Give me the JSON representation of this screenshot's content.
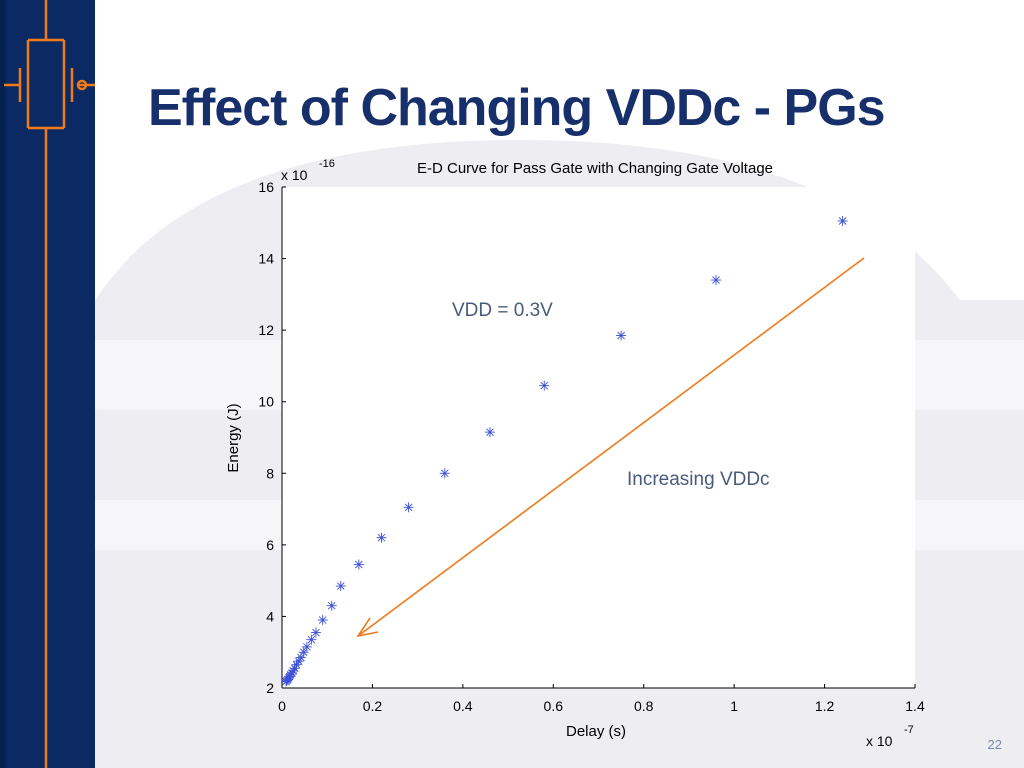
{
  "slide": {
    "title": "Effect of Changing VDDc - PGs",
    "page_number": "22"
  },
  "colors": {
    "sidebar": "#0b2a63",
    "title": "#17306b",
    "markers": "#3b4fd6",
    "arrow": "#f07a1a",
    "annotation_text": "#4a5a7a"
  },
  "annotations": {
    "vdd_label": "VDD = 0.3V",
    "arrow_label": "Increasing VDDc"
  },
  "chart_data": {
    "type": "scatter",
    "title": "E-D Curve for Pass Gate with Changing Gate Voltage",
    "xlabel": "Delay (s)",
    "ylabel": "Energy (J)",
    "x_multiplier": "x 10",
    "x_exponent": "-7",
    "y_multiplier": "x 10",
    "y_exponent": "-16",
    "xlim": [
      0,
      1.4
    ],
    "ylim": [
      2,
      16
    ],
    "xticks": [
      "0",
      "0.2",
      "0.4",
      "0.6",
      "0.8",
      "1",
      "1.2",
      "1.4"
    ],
    "yticks": [
      "2",
      "4",
      "6",
      "8",
      "10",
      "12",
      "14",
      "16"
    ],
    "marker": "*",
    "grid": false,
    "series": [
      {
        "x": [
          1.24,
          0.96,
          0.75,
          0.58,
          0.46,
          0.36,
          0.28,
          0.22,
          0.17,
          0.13,
          0.11,
          0.09,
          0.075,
          0.065,
          0.055,
          0.048,
          0.042,
          0.037,
          0.032,
          0.028,
          0.025,
          0.022,
          0.019,
          0.017,
          0.015,
          0.013,
          0.011,
          0.009
        ],
        "y": [
          15.05,
          13.4,
          11.85,
          10.45,
          9.15,
          8.0,
          7.05,
          6.2,
          5.45,
          4.85,
          4.3,
          3.9,
          3.55,
          3.35,
          3.15,
          3.0,
          2.85,
          2.75,
          2.65,
          2.55,
          2.48,
          2.42,
          2.37,
          2.32,
          2.28,
          2.24,
          2.21,
          2.18
        ]
      }
    ]
  }
}
